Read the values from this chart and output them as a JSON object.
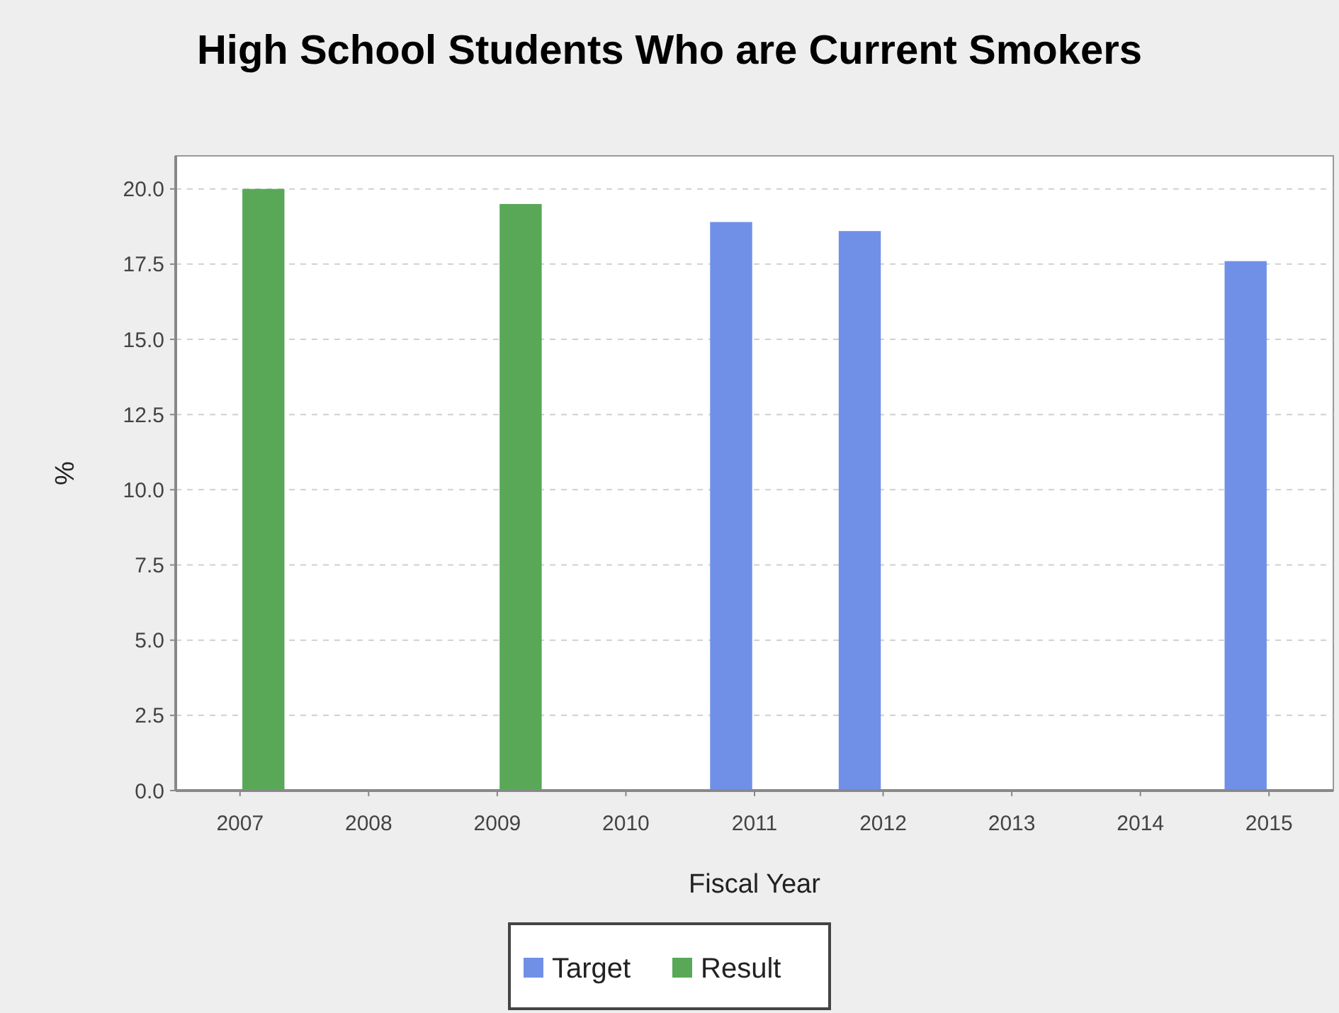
{
  "chart_data": {
    "type": "bar",
    "title": "High School Students Who are Current Smokers",
    "xlabel": "Fiscal Year",
    "ylabel": "%",
    "categories": [
      "2007",
      "2008",
      "2009",
      "2010",
      "2011",
      "2012",
      "2013",
      "2014",
      "2015"
    ],
    "series": [
      {
        "name": "Target",
        "color": "#7090e8",
        "values": [
          null,
          null,
          null,
          null,
          18.9,
          18.6,
          null,
          null,
          17.6
        ]
      },
      {
        "name": "Result",
        "color": "#58a858",
        "values": [
          20.0,
          null,
          19.5,
          null,
          null,
          null,
          null,
          null,
          null
        ]
      }
    ],
    "ylim": [
      0,
      21.1
    ],
    "yticks": [
      {
        "value": 0,
        "label": "0.0"
      },
      {
        "value": 2.5,
        "label": "2.5"
      },
      {
        "value": 5,
        "label": "5.0"
      },
      {
        "value": 7.5,
        "label": "7.5"
      },
      {
        "value": 10,
        "label": "10.0"
      },
      {
        "value": 12.5,
        "label": "12.5"
      },
      {
        "value": 15,
        "label": "15.0"
      },
      {
        "value": 17.5,
        "label": "17.5"
      },
      {
        "value": 20,
        "label": "20.0"
      }
    ],
    "grid": "y",
    "legend": "bottom"
  }
}
